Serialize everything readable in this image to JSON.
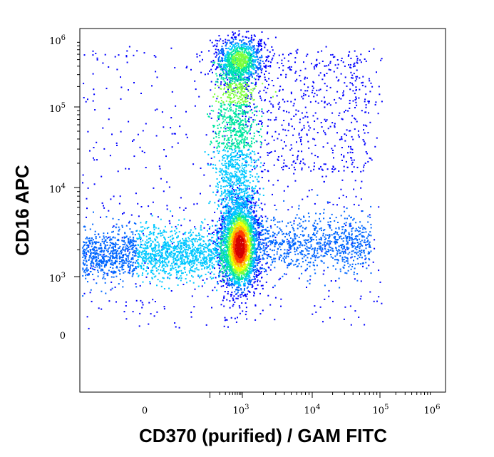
{
  "chart_data": {
    "type": "scatter",
    "style": "density-dot-plot (flow cytometry, rainbow density coloring)",
    "xlabel": "CD370 (purified) / GAM FITC",
    "ylabel": "CD16 APC",
    "x_scale": "biexponential (logicle)",
    "y_scale": "biexponential (logicle)",
    "x_ticks": [
      {
        "base": "0",
        "exp": ""
      },
      {
        "base": "10",
        "exp": "3"
      },
      {
        "base": "10",
        "exp": "4"
      },
      {
        "base": "10",
        "exp": "5"
      },
      {
        "base": "10",
        "exp": "6"
      }
    ],
    "y_ticks": [
      {
        "base": "0",
        "exp": ""
      },
      {
        "base": "10",
        "exp": "3"
      },
      {
        "base": "10",
        "exp": "4"
      },
      {
        "base": "10",
        "exp": "5"
      },
      {
        "base": "10",
        "exp": "6"
      }
    ],
    "density_colors": [
      "#0000ff",
      "#0066ff",
      "#00c8ff",
      "#00e6a0",
      "#7dff3c",
      "#f0ff00",
      "#ffb400",
      "#ff3c00",
      "#d20000"
    ],
    "populations": [
      {
        "description": "main dense cluster, CD370 positive, CD16 low",
        "center_x": 800,
        "center_y": 2200,
        "relative_density": 1.0
      },
      {
        "description": "upper cluster, CD370 positive, CD16 high",
        "center_x": 800,
        "center_y": 500000,
        "relative_density": 0.55
      },
      {
        "description": "diffuse CD16-low, CD370-negative tail",
        "center_x": -200,
        "center_y": 1800,
        "relative_density": 0.2
      },
      {
        "description": "CD16-high scatter toward high CD370",
        "center_x": 20000,
        "center_y": 300000,
        "relative_density": 0.1
      }
    ]
  }
}
